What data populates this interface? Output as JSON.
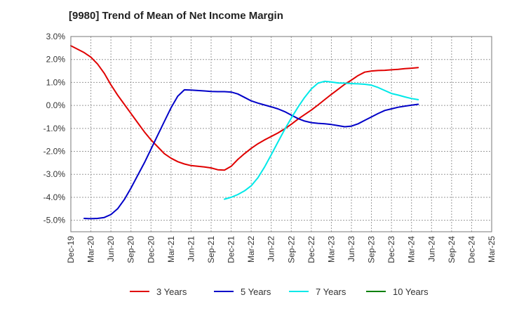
{
  "chart_data": {
    "type": "line",
    "title": "[9980]  Trend of Mean of Net Income Margin",
    "y_ticks": [
      "3.0%",
      "2.0%",
      "1.0%",
      "0.0%",
      "-1.0%",
      "-2.0%",
      "-3.0%",
      "-4.0%",
      "-5.0%"
    ],
    "y_tick_values": [
      3,
      2,
      1,
      0,
      -1,
      -2,
      -3,
      -4,
      -5
    ],
    "ylim": [
      -5.5,
      3.0
    ],
    "y_unit": "%",
    "x_ticks": [
      "Dec-19",
      "Mar-20",
      "Jun-20",
      "Sep-20",
      "Dec-20",
      "Mar-21",
      "Jun-21",
      "Sep-21",
      "Dec-21",
      "Mar-22",
      "Jun-22",
      "Sep-22",
      "Dec-22",
      "Mar-23",
      "Jun-23",
      "Sep-23",
      "Dec-23",
      "Mar-24",
      "Jun-24",
      "Sep-24",
      "Dec-24",
      "Mar-25"
    ],
    "xlim": [
      0,
      63
    ],
    "x_unit": "months since Dec-19",
    "grid": true,
    "legend_position": "bottom",
    "series": [
      {
        "name": "3 Years",
        "color": "#e00000",
        "points": [
          [
            0,
            2.6
          ],
          [
            1,
            2.45
          ],
          [
            2,
            2.3
          ],
          [
            3,
            2.1
          ],
          [
            4,
            1.8
          ],
          [
            5,
            1.4
          ],
          [
            6,
            0.9
          ],
          [
            7,
            0.45
          ],
          [
            8,
            0.05
          ],
          [
            9,
            -0.35
          ],
          [
            10,
            -0.75
          ],
          [
            11,
            -1.15
          ],
          [
            12,
            -1.5
          ],
          [
            13,
            -1.8
          ],
          [
            14,
            -2.1
          ],
          [
            15,
            -2.3
          ],
          [
            16,
            -2.45
          ],
          [
            17,
            -2.55
          ],
          [
            18,
            -2.62
          ],
          [
            19,
            -2.65
          ],
          [
            20,
            -2.68
          ],
          [
            21,
            -2.72
          ],
          [
            22,
            -2.8
          ],
          [
            23,
            -2.82
          ],
          [
            24,
            -2.65
          ],
          [
            25,
            -2.35
          ],
          [
            26,
            -2.1
          ],
          [
            27,
            -1.87
          ],
          [
            28,
            -1.67
          ],
          [
            29,
            -1.5
          ],
          [
            30,
            -1.35
          ],
          [
            31,
            -1.2
          ],
          [
            32,
            -1.02
          ],
          [
            33,
            -0.82
          ],
          [
            34,
            -0.6
          ],
          [
            35,
            -0.4
          ],
          [
            36,
            -0.2
          ],
          [
            37,
            0.02
          ],
          [
            38,
            0.25
          ],
          [
            39,
            0.48
          ],
          [
            40,
            0.7
          ],
          [
            41,
            0.92
          ],
          [
            42,
            1.1
          ],
          [
            43,
            1.3
          ],
          [
            44,
            1.45
          ],
          [
            45,
            1.5
          ],
          [
            46,
            1.52
          ],
          [
            47,
            1.53
          ],
          [
            48,
            1.55
          ],
          [
            49,
            1.57
          ],
          [
            50,
            1.6
          ],
          [
            51,
            1.62
          ],
          [
            52,
            1.65
          ]
        ]
      },
      {
        "name": "5 Years",
        "color": "#0000c8",
        "points": [
          [
            2,
            -4.92
          ],
          [
            3,
            -4.93
          ],
          [
            4,
            -4.92
          ],
          [
            5,
            -4.88
          ],
          [
            6,
            -4.75
          ],
          [
            7,
            -4.5
          ],
          [
            8,
            -4.1
          ],
          [
            9,
            -3.6
          ],
          [
            10,
            -3.05
          ],
          [
            11,
            -2.5
          ],
          [
            12,
            -1.9
          ],
          [
            13,
            -1.3
          ],
          [
            14,
            -0.7
          ],
          [
            15,
            -0.1
          ],
          [
            16,
            0.4
          ],
          [
            17,
            0.68
          ],
          [
            18,
            0.67
          ],
          [
            19,
            0.65
          ],
          [
            20,
            0.63
          ],
          [
            21,
            0.61
          ],
          [
            22,
            0.6
          ],
          [
            23,
            0.6
          ],
          [
            24,
            0.58
          ],
          [
            25,
            0.5
          ],
          [
            26,
            0.35
          ],
          [
            27,
            0.2
          ],
          [
            28,
            0.1
          ],
          [
            29,
            0.02
          ],
          [
            30,
            -0.06
          ],
          [
            31,
            -0.15
          ],
          [
            32,
            -0.27
          ],
          [
            33,
            -0.42
          ],
          [
            34,
            -0.57
          ],
          [
            35,
            -0.68
          ],
          [
            36,
            -0.75
          ],
          [
            37,
            -0.78
          ],
          [
            38,
            -0.8
          ],
          [
            39,
            -0.83
          ],
          [
            40,
            -0.88
          ],
          [
            41,
            -0.93
          ],
          [
            42,
            -0.9
          ],
          [
            43,
            -0.8
          ],
          [
            44,
            -0.65
          ],
          [
            45,
            -0.5
          ],
          [
            46,
            -0.35
          ],
          [
            47,
            -0.22
          ],
          [
            48,
            -0.15
          ],
          [
            49,
            -0.08
          ],
          [
            50,
            -0.03
          ],
          [
            51,
            0.01
          ],
          [
            52,
            0.05
          ]
        ]
      },
      {
        "name": "7 Years",
        "color": "#00e8e8",
        "points": [
          [
            23,
            -4.08
          ],
          [
            24,
            -4.0
          ],
          [
            25,
            -3.88
          ],
          [
            26,
            -3.72
          ],
          [
            27,
            -3.5
          ],
          [
            28,
            -3.15
          ],
          [
            29,
            -2.68
          ],
          [
            30,
            -2.15
          ],
          [
            31,
            -1.6
          ],
          [
            32,
            -1.05
          ],
          [
            33,
            -0.55
          ],
          [
            34,
            -0.08
          ],
          [
            35,
            0.35
          ],
          [
            36,
            0.72
          ],
          [
            37,
            0.97
          ],
          [
            38,
            1.05
          ],
          [
            39,
            1.02
          ],
          [
            40,
            0.98
          ],
          [
            41,
            0.97
          ],
          [
            42,
            0.95
          ],
          [
            43,
            0.94
          ],
          [
            44,
            0.92
          ],
          [
            45,
            0.88
          ],
          [
            46,
            0.78
          ],
          [
            47,
            0.65
          ],
          [
            48,
            0.52
          ],
          [
            49,
            0.45
          ],
          [
            50,
            0.37
          ],
          [
            51,
            0.3
          ],
          [
            52,
            0.25
          ]
        ]
      },
      {
        "name": "10 Years",
        "color": "#008000",
        "points": []
      }
    ]
  }
}
